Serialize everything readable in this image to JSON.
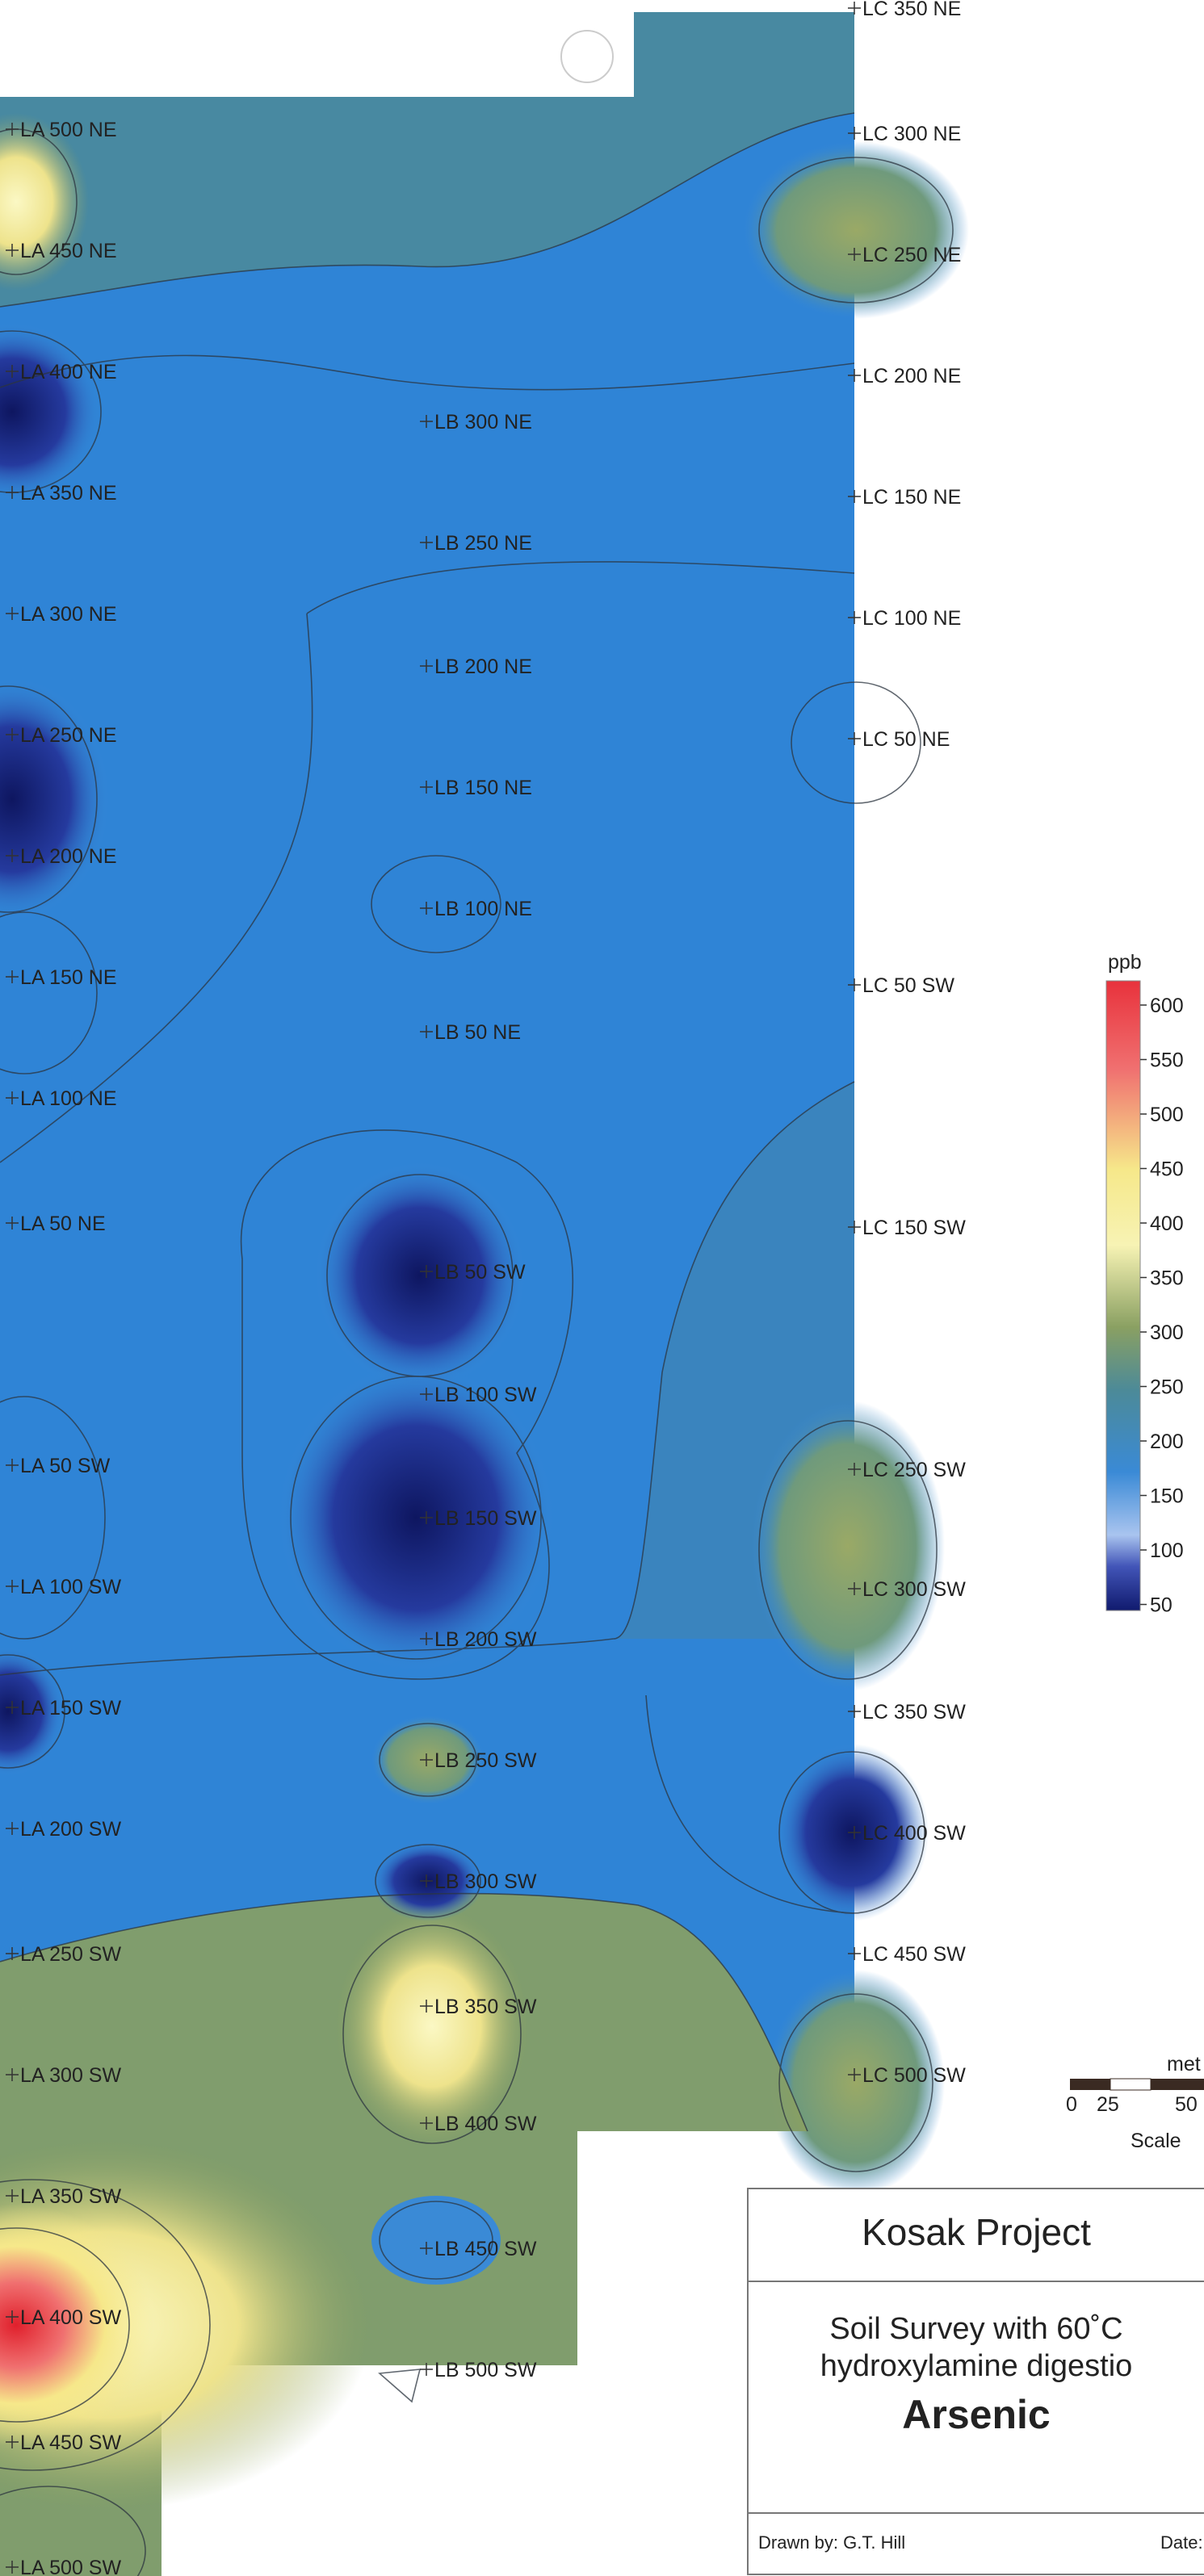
{
  "map": {
    "line_a_labels": [
      "LA 500 NE",
      "LA 450 NE",
      "LA 400 NE",
      "LA 350 NE",
      "LA 300 NE",
      "LA 250 NE",
      "LA 200 NE",
      "LA 150 NE",
      "LA 100 NE",
      "LA 50 NE",
      "LA 50 SW",
      "LA 100 SW",
      "LA 150 SW",
      "LA 200 SW",
      "LA 250 SW",
      "LA 300 SW",
      "LA 350 SW",
      "LA 400 SW",
      "LA 450 SW",
      "LA 500 SW"
    ],
    "line_b_labels": [
      "LB 300 NE",
      "LB 250 NE",
      "LB 200 NE",
      "LB 150 NE",
      "LB 100 NE",
      "LB 50 NE",
      "LB 50 SW",
      "LB 100 SW",
      "LB 150 SW",
      "LB 200 SW",
      "LB 250 SW",
      "LB 300 SW",
      "LB 350 SW",
      "LB 400 SW",
      "LB 450 SW",
      "LB 500 SW"
    ],
    "line_c_labels": [
      "LC 350 NE",
      "LC 300 NE",
      "LC 250 NE",
      "LC 200 NE",
      "LC 150 NE",
      "LC 100 NE",
      "LC 50 NE",
      "LC 50 SW",
      "LC 150 SW",
      "LC 250 SW",
      "LC 300 SW",
      "LC 350 SW",
      "LC 400 SW",
      "LC 450 SW",
      "LC 500 SW"
    ]
  },
  "legend": {
    "unit": "ppb",
    "ticks": [
      "600",
      "550",
      "500",
      "450",
      "400",
      "350",
      "300",
      "250",
      "200",
      "150",
      "100",
      "50"
    ],
    "colors": {
      "high": "#e8323c",
      "mid_high": "#f6e88a",
      "mid": "#8aa062",
      "low_mid": "#3a8ad6",
      "low": "#101a6e"
    }
  },
  "scale": {
    "unit_label": "met",
    "ticks": [
      "0",
      "25",
      "50"
    ],
    "caption": "Scale"
  },
  "title_block": {
    "project": "Kosak Project",
    "survey_line1": "Soil Survey with 60˚C",
    "survey_line2": "hydroxylamine digestio",
    "element": "Arsenic",
    "drawn_by": "Drawn by: G.T. Hill",
    "date_label": "Date:"
  }
}
